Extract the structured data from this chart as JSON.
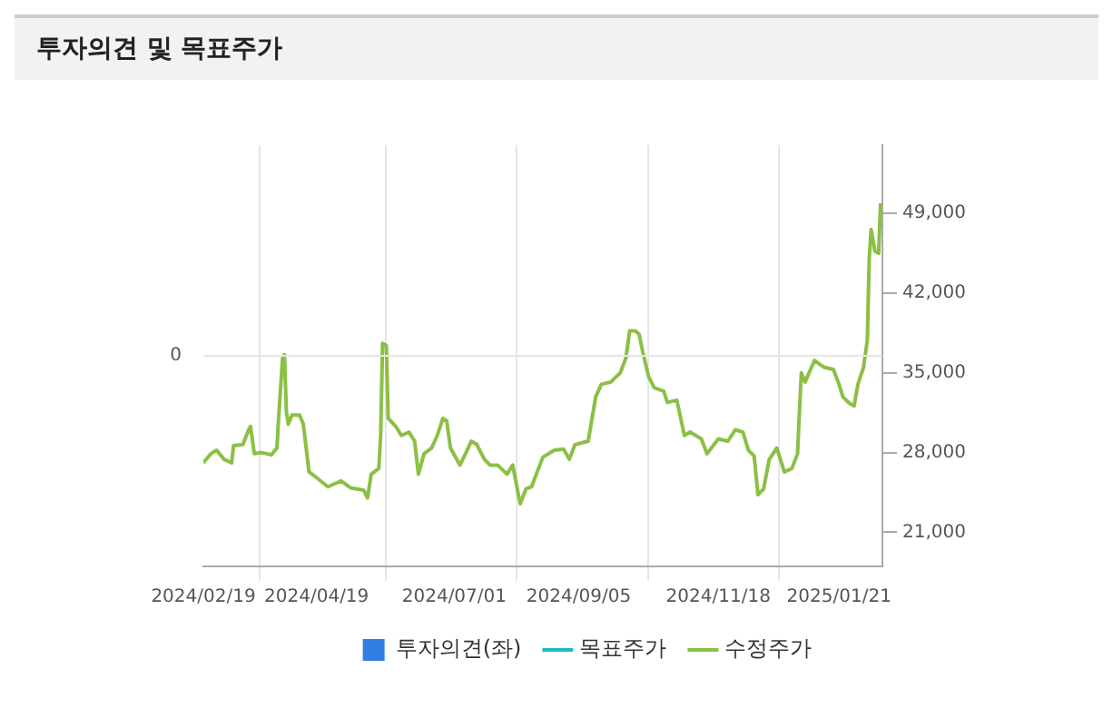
{
  "chart_data": {
    "type": "line",
    "title": "투자의견 및 목표주가",
    "xlim": [
      "2024-02-19",
      "2025-02-13"
    ],
    "xticks": [
      {
        "value": "2024-02-19",
        "label": "2024/02/19"
      },
      {
        "value": "2024-04-19",
        "label": "2024/04/19"
      },
      {
        "value": "2024-07-01",
        "label": "2024/07/01"
      },
      {
        "value": "2024-09-05",
        "label": "2024/09/05"
      },
      {
        "value": "2024-11-18",
        "label": "2024/11/18"
      },
      {
        "value": "2025-01-21",
        "label": "2025/01/21"
      }
    ],
    "annotations": [
      "0"
    ],
    "y2lim": [
      18000,
      55000
    ],
    "y2ticks": [
      {
        "value": 21000,
        "label": "21,000"
      },
      {
        "value": 28000,
        "label": "28,000"
      },
      {
        "value": 35000,
        "label": "35,000"
      },
      {
        "value": 42000,
        "label": "42,000"
      },
      {
        "value": 49000,
        "label": "49,000"
      }
    ],
    "grid": true,
    "legend": "bottom",
    "marker": "none",
    "line_style": "solid",
    "series": [
      {
        "name": "투자의견(좌)",
        "type": "bar",
        "color": "#2f7ee0",
        "axis": "y"
      },
      {
        "name": "목표주가",
        "color": "#20b8c8",
        "axis": "y2"
      },
      {
        "name": "수정주가",
        "color": "#8cbf45",
        "axis": "y2",
        "x": [
          "2024-02-19",
          "2024-02-23",
          "2024-02-26",
          "2024-03-01",
          "2024-03-05",
          "2024-03-06",
          "2024-03-11",
          "2024-03-14",
          "2024-03-15",
          "2024-03-17",
          "2024-03-21",
          "2024-03-26",
          "2024-03-29",
          "2024-03-30",
          "2024-04-01",
          "2024-04-02",
          "2024-04-03",
          "2024-04-04",
          "2024-04-06",
          "2024-04-10",
          "2024-04-12",
          "2024-04-15",
          "2024-04-19",
          "2024-04-25",
          "2024-05-02",
          "2024-05-07",
          "2024-05-14",
          "2024-05-16",
          "2024-05-18",
          "2024-05-22",
          "2024-05-23",
          "2024-05-24",
          "2024-05-26",
          "2024-05-27",
          "2024-05-31",
          "2024-06-03",
          "2024-06-07",
          "2024-06-10",
          "2024-06-12",
          "2024-06-15",
          "2024-06-19",
          "2024-06-22",
          "2024-06-25",
          "2024-06-27",
          "2024-06-29",
          "2024-07-04",
          "2024-07-07",
          "2024-07-10",
          "2024-07-13",
          "2024-07-17",
          "2024-07-20",
          "2024-07-24",
          "2024-07-29",
          "2024-08-01",
          "2024-08-04",
          "2024-08-05",
          "2024-08-08",
          "2024-08-11",
          "2024-08-17",
          "2024-08-23",
          "2024-08-28",
          "2024-08-31",
          "2024-09-03",
          "2024-09-10",
          "2024-09-14",
          "2024-09-17",
          "2024-09-22",
          "2024-09-27",
          "2024-09-30",
          "2024-10-02",
          "2024-10-05",
          "2024-10-07",
          "2024-10-09",
          "2024-10-12",
          "2024-10-15",
          "2024-10-20",
          "2024-10-22",
          "2024-10-27",
          "2024-10-31",
          "2024-11-03",
          "2024-11-09",
          "2024-11-12",
          "2024-11-18",
          "2024-11-23",
          "2024-11-27",
          "2024-12-01",
          "2024-12-04",
          "2024-12-07",
          "2024-12-09",
          "2024-12-12",
          "2024-12-15",
          "2024-12-19",
          "2024-12-23",
          "2024-12-27",
          "2024-12-30",
          "2024-12-31",
          "2025-01-01",
          "2025-01-03",
          "2025-01-08",
          "2025-01-13",
          "2025-01-18",
          "2025-01-21",
          "2025-01-23",
          "2025-01-26",
          "2025-01-29",
          "2025-01-31",
          "2025-02-03",
          "2025-02-05",
          "2025-02-06",
          "2025-02-07",
          "2025-02-09",
          "2025-02-11",
          "2025-02-12"
        ],
        "values": [
          27100,
          27900,
          28200,
          27400,
          27100,
          28600,
          28700,
          30000,
          30300,
          27900,
          28000,
          27800,
          28400,
          31300,
          36300,
          36600,
          31600,
          30500,
          31300,
          31300,
          30500,
          26300,
          25800,
          25000,
          25500,
          24900,
          24700,
          24000,
          26100,
          26600,
          29500,
          37600,
          37400,
          31000,
          30300,
          29500,
          29800,
          29000,
          26100,
          27900,
          28400,
          29500,
          31000,
          30800,
          28400,
          26900,
          27900,
          29000,
          28700,
          27400,
          26900,
          26900,
          26100,
          26900,
          24300,
          23500,
          24800,
          25000,
          27600,
          28200,
          28300,
          27400,
          28700,
          29000,
          32900,
          34000,
          34200,
          35000,
          36300,
          38700,
          38700,
          38400,
          36800,
          34700,
          33700,
          33400,
          32400,
          32600,
          29500,
          29800,
          29200,
          27900,
          29200,
          29000,
          30000,
          29800,
          28200,
          27700,
          24300,
          24800,
          27400,
          28400,
          26300,
          26600,
          27900,
          31600,
          35000,
          34200,
          36100,
          35500,
          35300,
          34000,
          32900,
          32400,
          32100,
          34000,
          35500,
          37900,
          45000,
          47600,
          45700,
          45500,
          49900
        ]
      }
    ]
  }
}
